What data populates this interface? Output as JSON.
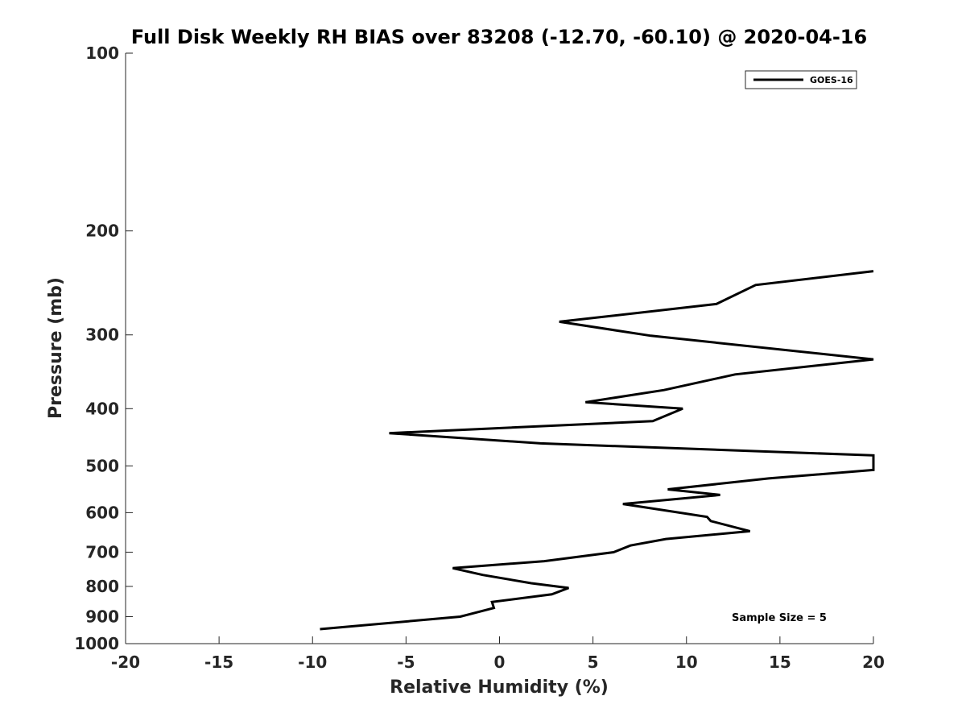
{
  "chart_data": {
    "type": "line",
    "title": "Full Disk Weekly RH BIAS over 83208 (-12.70, -60.10) @ 2020-04-16",
    "xlabel": "Relative Humidity (%)",
    "ylabel": "Pressure (mb)",
    "xlim": [
      -20,
      20
    ],
    "ylim": [
      1000,
      100
    ],
    "y_scale": "log",
    "y_reversed": true,
    "x_ticks": [
      "-20",
      "-15",
      "-10",
      "-5",
      "0",
      "5",
      "10",
      "15",
      "20"
    ],
    "y_ticks": [
      "100",
      "200",
      "300",
      "400",
      "500",
      "600",
      "700",
      "800",
      "900",
      "1000"
    ],
    "grid": false,
    "legend_position": "top-right",
    "annotation": "Sample Size = 5",
    "series": [
      {
        "name": "GOES-16",
        "color": "#000000",
        "x": [
          20,
          13.7,
          11.6,
          3.2,
          8.1,
          20,
          12.6,
          8.8,
          4.6,
          9.8,
          8.2,
          -5.9,
          2.2,
          20,
          20,
          14.4,
          9.0,
          11.8,
          6.6,
          11.1,
          11.3,
          13.4,
          8.9,
          7.0,
          6.1,
          2.4,
          -2.5,
          -0.9,
          1.7,
          3.7,
          2.8,
          -0.4,
          -0.3,
          -2.1,
          -9.6
        ],
        "y": [
          234,
          247,
          266,
          285,
          301,
          330,
          350,
          372,
          390,
          400,
          420,
          440,
          458,
          480,
          508,
          525,
          548,
          560,
          580,
          610,
          620,
          645,
          665,
          682,
          700,
          725,
          745,
          765,
          790,
          805,
          825,
          850,
          870,
          900,
          945
        ]
      }
    ]
  }
}
